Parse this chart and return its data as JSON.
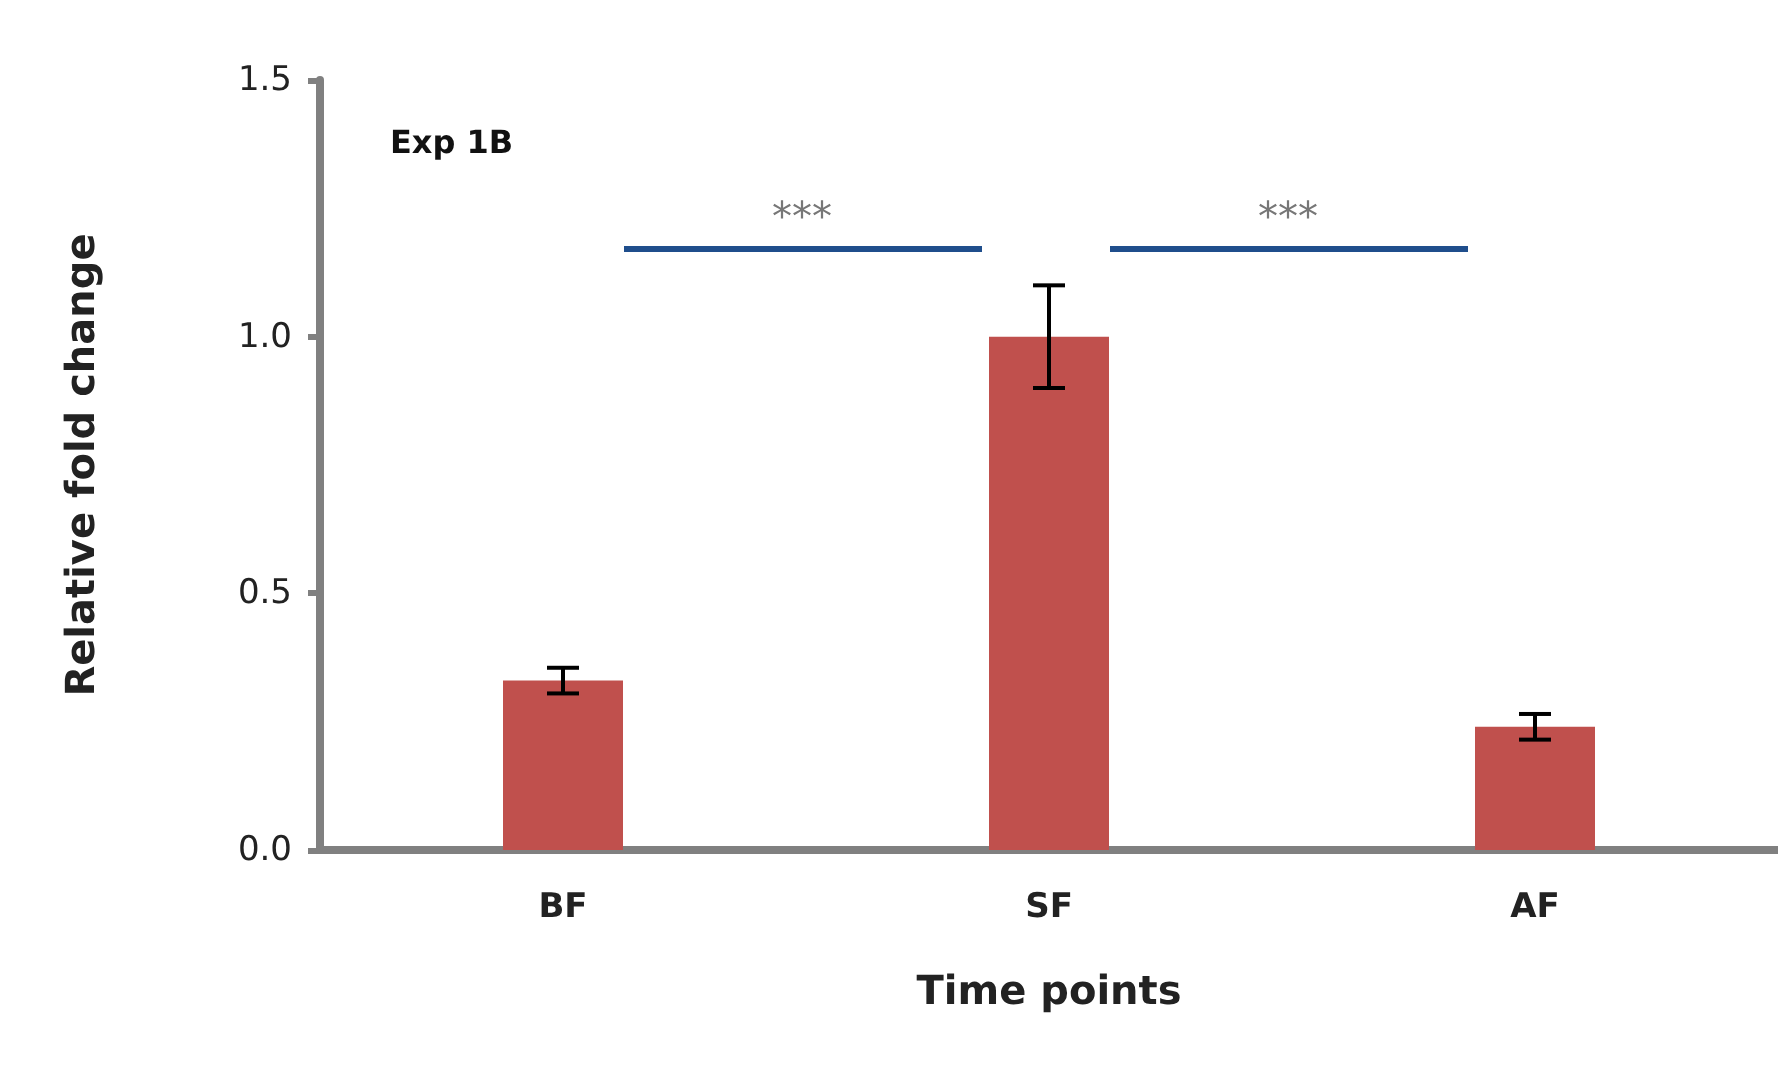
{
  "chart_data": {
    "type": "bar",
    "title": "Exp 1B",
    "xlabel": "Time points",
    "ylabel": "Relative fold change",
    "categories": [
      "BF",
      "SF",
      "AF"
    ],
    "values": [
      0.33,
      1.0,
      0.24
    ],
    "errors": [
      0.025,
      0.1,
      0.025
    ],
    "color": "#c0504d",
    "ylim": [
      0,
      1.5
    ],
    "yticks": [
      {
        "value": 0,
        "label": "0.0"
      },
      {
        "value": 0.5,
        "label": "0.5"
      },
      {
        "value": 1,
        "label": "1.0"
      },
      {
        "value": 1.5,
        "label": "1.5"
      }
    ],
    "annotations": [
      "***",
      "***"
    ]
  }
}
